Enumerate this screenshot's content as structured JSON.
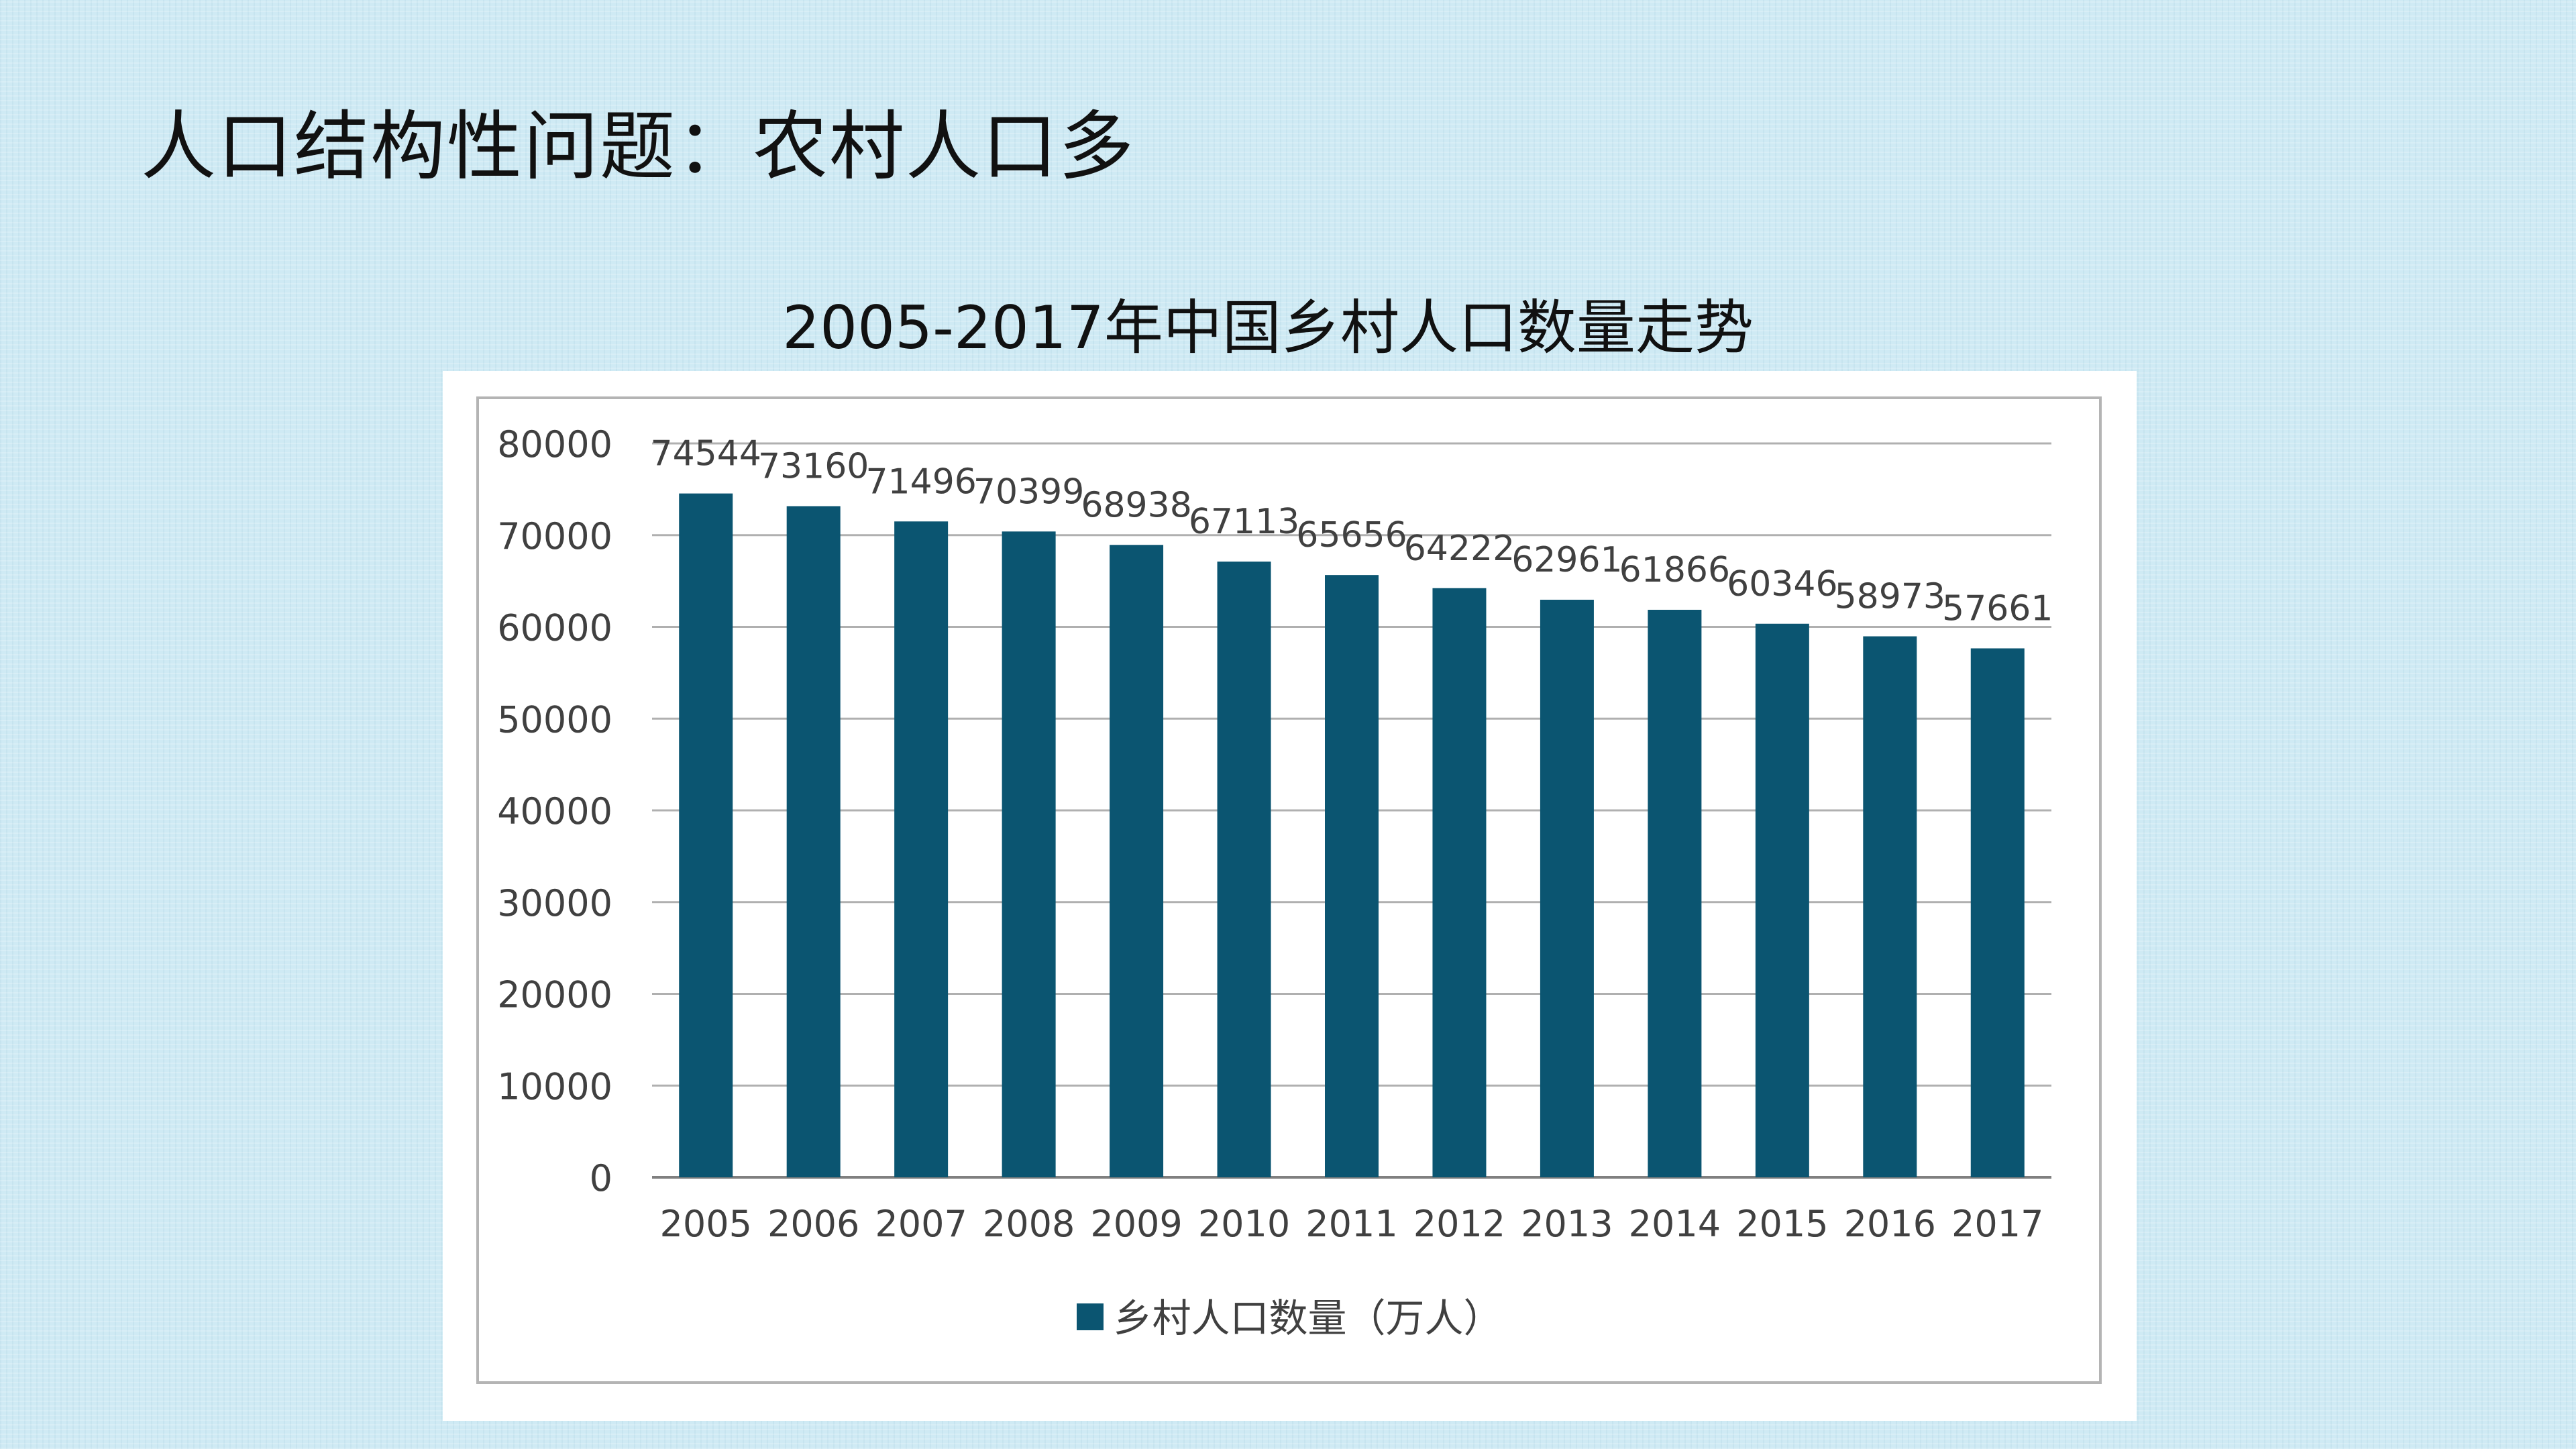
{
  "slide": {
    "title": "人口结构性问题：农村人口多"
  },
  "chart_data": {
    "type": "bar",
    "title": "2005-2017年中国乡村人口数量走势",
    "categories": [
      "2005",
      "2006",
      "2007",
      "2008",
      "2009",
      "2010",
      "2011",
      "2012",
      "2013",
      "2014",
      "2015",
      "2016",
      "2017"
    ],
    "series": [
      {
        "name": "乡村人口数量（万人）",
        "values": [
          74544,
          73160,
          71496,
          70399,
          68938,
          67113,
          65656,
          64222,
          62961,
          61866,
          60346,
          58973,
          57661
        ],
        "color": "#0b5571"
      }
    ],
    "ylim": [
      0,
      80000
    ],
    "yticks": [
      "0",
      "10000",
      "20000",
      "30000",
      "40000",
      "50000",
      "60000",
      "70000",
      "80000"
    ],
    "data_labels": [
      "74544",
      "73160",
      "71496",
      "70399",
      "68938",
      "67113",
      "65656",
      "64222",
      "62961",
      "61866",
      "60346",
      "58973",
      "57661"
    ],
    "grid": true,
    "legend_position": "bottom",
    "xlabel": "",
    "ylabel": ""
  }
}
